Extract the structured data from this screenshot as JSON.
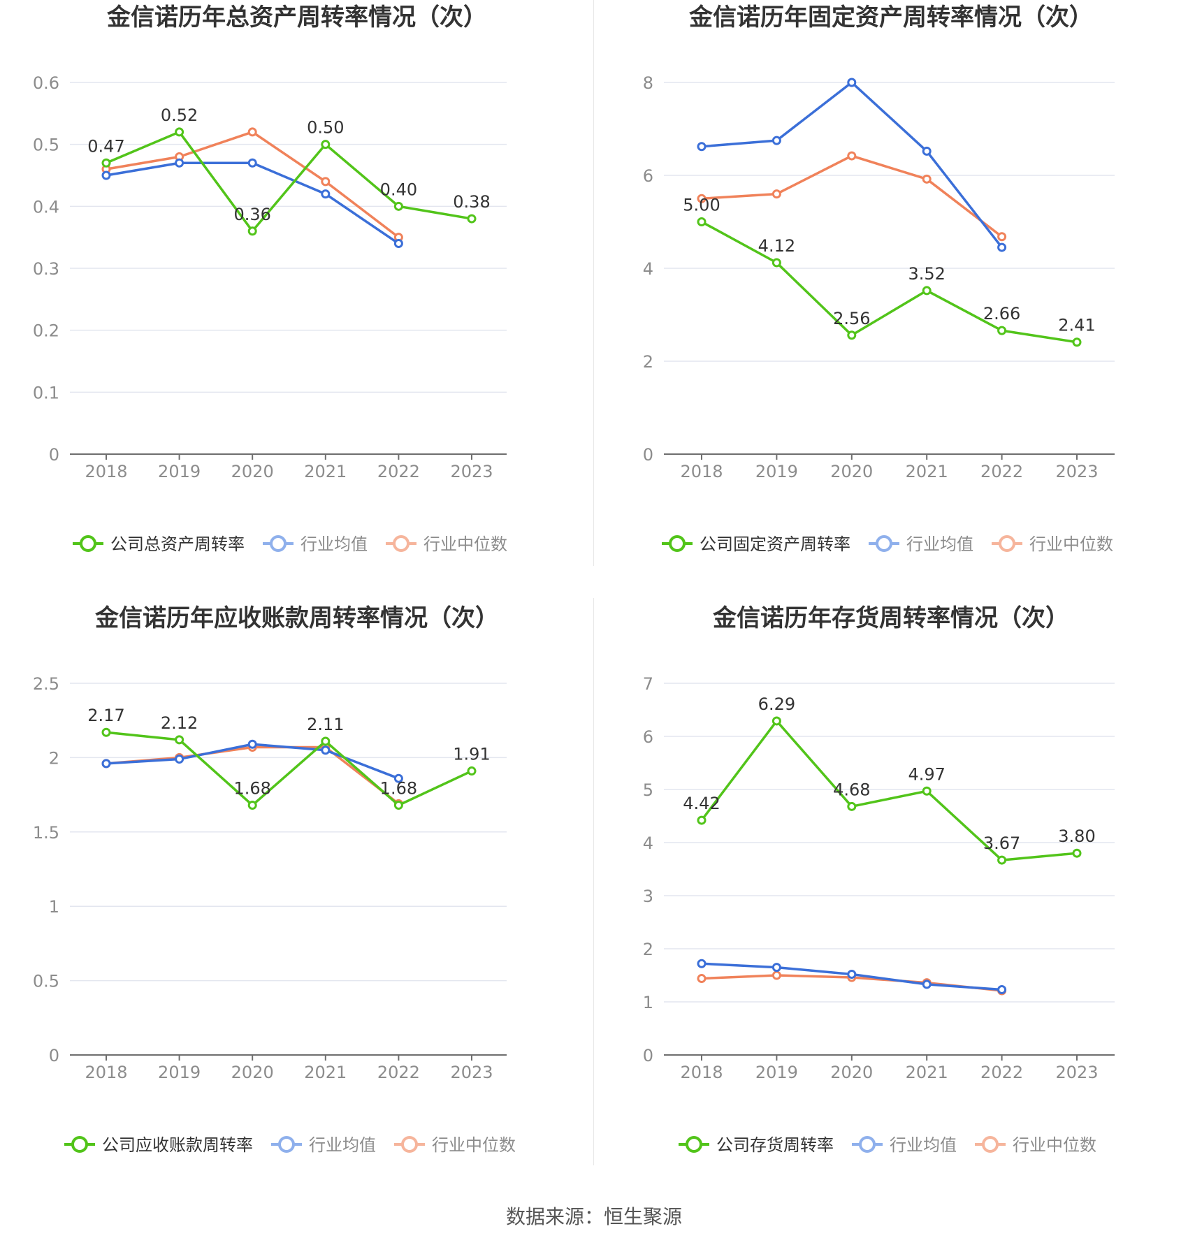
{
  "colors": {
    "company": "#52c41a",
    "avg": "#3b6fd8",
    "median": "#f0825a",
    "axis_text": "#8c8c8c",
    "grid": "#e3e6ef"
  },
  "legend_labels": {
    "avg": "行业均值",
    "median": "行业中位数"
  },
  "source": "数据来源：恒生聚源",
  "chart_data": [
    {
      "type": "line",
      "title": "金信诺历年总资产周转率情况（次）",
      "categories": [
        "2018",
        "2019",
        "2020",
        "2021",
        "2022",
        "2023"
      ],
      "ylim": [
        0,
        0.6
      ],
      "yticks": [
        "0",
        "0.1",
        "0.2",
        "0.3",
        "0.4",
        "0.5",
        "0.6"
      ],
      "grid": true,
      "legend": "bottom",
      "series": [
        {
          "name": "公司总资产周转率",
          "role": "company",
          "values": [
            0.47,
            0.52,
            0.36,
            0.5,
            0.4,
            0.38
          ],
          "labels": [
            "0.47",
            "0.52",
            "0.36",
            "0.50",
            "0.40",
            "0.38"
          ]
        },
        {
          "name": "行业均值",
          "role": "avg",
          "values": [
            0.45,
            0.47,
            0.47,
            0.42,
            0.34,
            null
          ]
        },
        {
          "name": "行业中位数",
          "role": "median",
          "values": [
            0.46,
            0.48,
            0.52,
            0.44,
            0.35,
            null
          ]
        }
      ]
    },
    {
      "type": "line",
      "title": "金信诺历年固定资产周转率情况（次）",
      "categories": [
        "2018",
        "2019",
        "2020",
        "2021",
        "2022",
        "2023"
      ],
      "ylim": [
        0,
        8
      ],
      "yticks": [
        "0",
        "2",
        "4",
        "6",
        "8"
      ],
      "grid": true,
      "legend": "bottom",
      "series": [
        {
          "name": "公司固定资产周转率",
          "role": "company",
          "values": [
            5.0,
            4.12,
            2.56,
            3.52,
            2.66,
            2.41
          ],
          "labels": [
            "5.00",
            "4.12",
            "2.56",
            "3.52",
            "2.66",
            "2.41"
          ]
        },
        {
          "name": "行业均值",
          "role": "avg",
          "values": [
            6.62,
            6.75,
            8.0,
            6.52,
            4.45,
            null
          ]
        },
        {
          "name": "行业中位数",
          "role": "median",
          "values": [
            5.5,
            5.6,
            6.42,
            5.92,
            4.68,
            null
          ]
        }
      ]
    },
    {
      "type": "line",
      "title": "金信诺历年应收账款周转率情况（次）",
      "categories": [
        "2018",
        "2019",
        "2020",
        "2021",
        "2022",
        "2023"
      ],
      "ylim": [
        0,
        2.5
      ],
      "yticks": [
        "0",
        "0.5",
        "1",
        "1.5",
        "2",
        "2.5"
      ],
      "grid": true,
      "legend": "bottom",
      "series": [
        {
          "name": "公司应收账款周转率",
          "role": "company",
          "values": [
            2.17,
            2.12,
            1.68,
            2.11,
            1.68,
            1.91
          ],
          "labels": [
            "2.17",
            "2.12",
            "1.68",
            "2.11",
            "1.68",
            "1.91"
          ]
        },
        {
          "name": "行业均值",
          "role": "avg",
          "values": [
            1.96,
            1.99,
            2.09,
            2.05,
            1.86,
            null
          ]
        },
        {
          "name": "行业中位数",
          "role": "median",
          "values": [
            1.96,
            2.0,
            2.07,
            2.07,
            1.69,
            null
          ]
        }
      ]
    },
    {
      "type": "line",
      "title": "金信诺历年存货周转率情况（次）",
      "categories": [
        "2018",
        "2019",
        "2020",
        "2021",
        "2022",
        "2023"
      ],
      "ylim": [
        0,
        7
      ],
      "yticks": [
        "0",
        "1",
        "2",
        "3",
        "4",
        "5",
        "6",
        "7"
      ],
      "grid": true,
      "legend": "bottom",
      "series": [
        {
          "name": "公司存货周转率",
          "role": "company",
          "values": [
            4.42,
            6.29,
            4.68,
            4.97,
            3.67,
            3.8
          ],
          "labels": [
            "4.42",
            "6.29",
            "4.68",
            "4.97",
            "3.67",
            "3.80"
          ]
        },
        {
          "name": "行业均值",
          "role": "avg",
          "values": [
            1.72,
            1.65,
            1.52,
            1.33,
            1.23,
            null
          ]
        },
        {
          "name": "行业中位数",
          "role": "median",
          "values": [
            1.44,
            1.5,
            1.46,
            1.36,
            1.21,
            null
          ]
        }
      ]
    }
  ]
}
